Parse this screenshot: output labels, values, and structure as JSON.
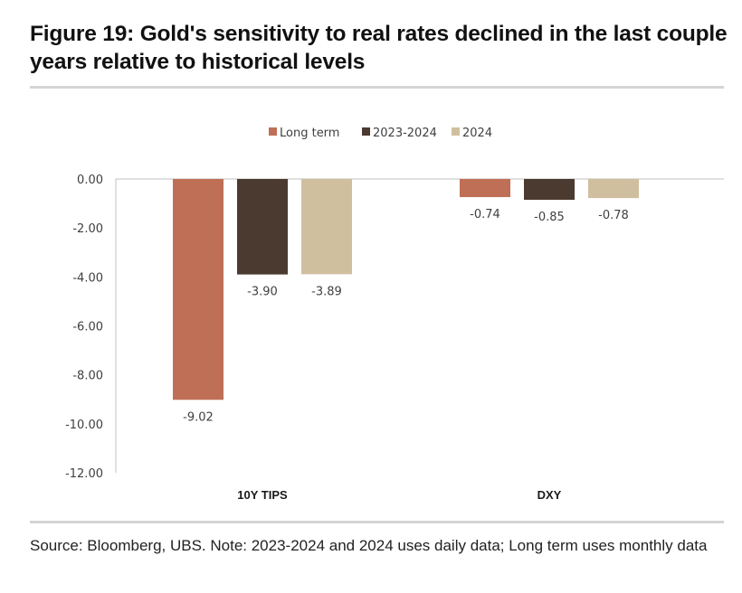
{
  "header": {
    "title": "Figure 19: Gold's sensitivity to real rates declined in the last couple years relative to historical levels"
  },
  "footer": {
    "source": "Source: Bloomberg, UBS. Note: 2023-2024 and 2024 uses daily data; Long term uses monthly data"
  },
  "chart_data": {
    "type": "bar",
    "title": "Figure 19: Gold's sensitivity to real rates declined in the last couple years relative to historical levels",
    "xlabel": "",
    "ylabel": "",
    "categories": [
      "10Y TIPS",
      "DXY"
    ],
    "series": [
      {
        "name": "Long term",
        "color": "#bf6f55",
        "values": [
          -9.02,
          -0.74
        ],
        "labels": [
          "-9.02",
          "-0.74"
        ]
      },
      {
        "name": "2023-2024",
        "color": "#4b3a2f",
        "values": [
          -3.9,
          -0.85
        ],
        "labels": [
          "-3.90",
          "-0.85"
        ]
      },
      {
        "name": "2024",
        "color": "#d0bf9f",
        "values": [
          -3.89,
          -0.78
        ],
        "labels": [
          "-3.89",
          "-0.78"
        ]
      }
    ],
    "ylim": [
      -12,
      0
    ],
    "yticks": [
      0,
      -2,
      -4,
      -6,
      -8,
      -10,
      -12
    ],
    "ytick_labels": [
      "0.00",
      "-2.00",
      "-4.00",
      "-6.00",
      "-8.00",
      "-10.00",
      "-12.00"
    ],
    "grid": false,
    "legend_position": "top-center",
    "data_labels": true
  }
}
